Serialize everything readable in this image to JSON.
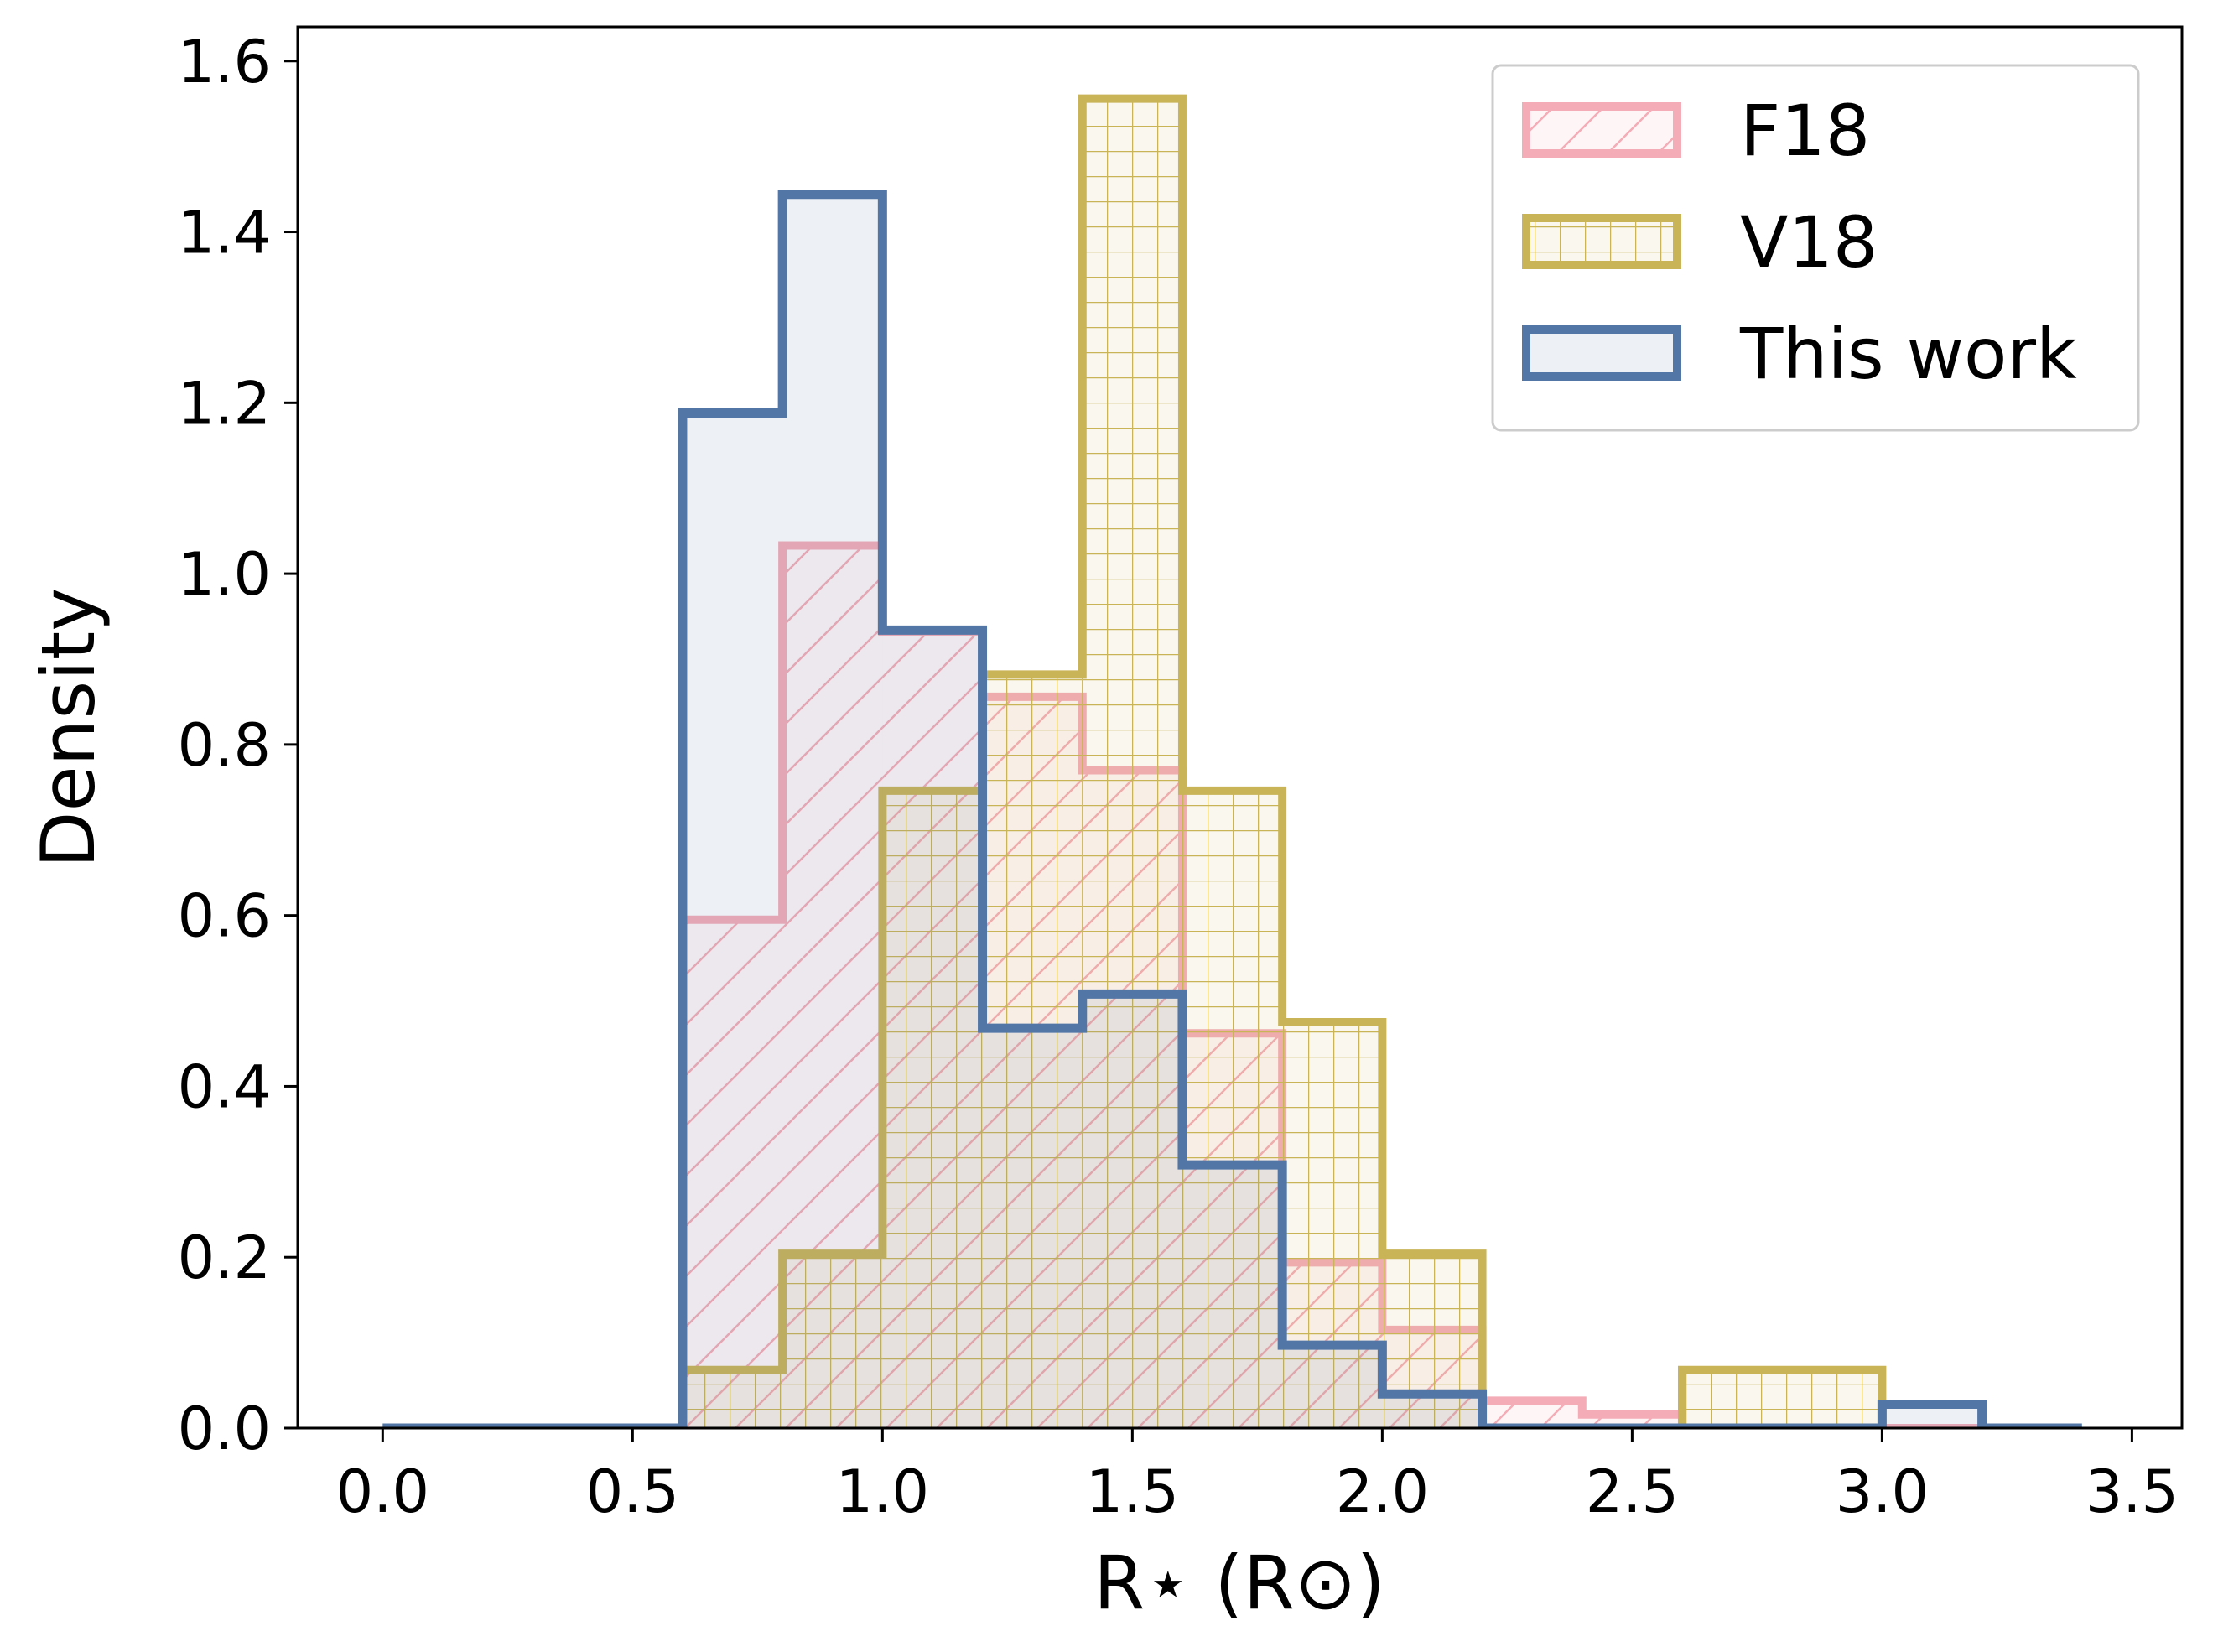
{
  "chart_data": {
    "type": "histogram",
    "xlabel": "R⋆ (R⊙)",
    "ylabel": "Density",
    "xlim": [
      -0.17,
      3.6
    ],
    "ylim": [
      0,
      1.64
    ],
    "grid": false,
    "legend_position": "top-right",
    "bin_width": 0.2,
    "xticks": [
      0.0,
      0.5,
      1.0,
      1.5,
      2.0,
      2.5,
      3.0,
      3.5
    ],
    "xtick_labels": [
      "0.0",
      "0.5",
      "1.0",
      "1.5",
      "2.0",
      "2.5",
      "3.0",
      "3.5"
    ],
    "yticks": [
      0.0,
      0.2,
      0.4,
      0.6,
      0.8,
      1.0,
      1.2,
      1.4,
      1.6
    ],
    "ytick_labels": [
      "0.0",
      "0.2",
      "0.4",
      "0.6",
      "0.8",
      "1.0",
      "1.2",
      "1.4",
      "1.6"
    ],
    "series": [
      {
        "name": "F18",
        "color": "#f4acb7",
        "fill": "rgba(244,172,183,0.12)",
        "hatch": "diagonal",
        "bin_edges": [
          0.6,
          0.8,
          1.0,
          1.2,
          1.4,
          1.6,
          1.8,
          2.0,
          2.2,
          2.4,
          2.6,
          2.8,
          3.0,
          3.2
        ],
        "values": [
          0.595,
          1.033,
          0.932,
          0.856,
          0.77,
          0.462,
          0.194,
          0.115,
          0.032,
          0.016,
          0.0,
          0.0,
          0.0
        ]
      },
      {
        "name": "V18",
        "color": "#c9b458",
        "fill": "rgba(201,180,88,0.1)",
        "hatch": "grid",
        "bin_edges": [
          0.6,
          0.8,
          1.0,
          1.2,
          1.4,
          1.6,
          1.8,
          2.0,
          2.2,
          2.4,
          2.6,
          2.8,
          3.0
        ],
        "values": [
          0.068,
          0.204,
          0.746,
          0.882,
          1.556,
          0.746,
          0.475,
          0.204,
          0.0,
          0.0,
          0.068,
          0.068
        ]
      },
      {
        "name": "This work",
        "color": "#5277a6",
        "fill": "rgba(82,119,166,0.1)",
        "hatch": "none",
        "bin_edges": [
          0.0,
          0.2,
          0.4,
          0.6,
          0.8,
          1.0,
          1.2,
          1.4,
          1.6,
          1.8,
          2.0,
          2.2,
          2.4,
          2.6,
          2.8,
          3.0,
          3.2,
          3.4
        ],
        "values": [
          0.0,
          0.0,
          0.0,
          1.188,
          1.444,
          0.934,
          0.468,
          0.508,
          0.308,
          0.097,
          0.04,
          0.0,
          0.0,
          0.0,
          0.0,
          0.028,
          0.0
        ]
      }
    ]
  }
}
